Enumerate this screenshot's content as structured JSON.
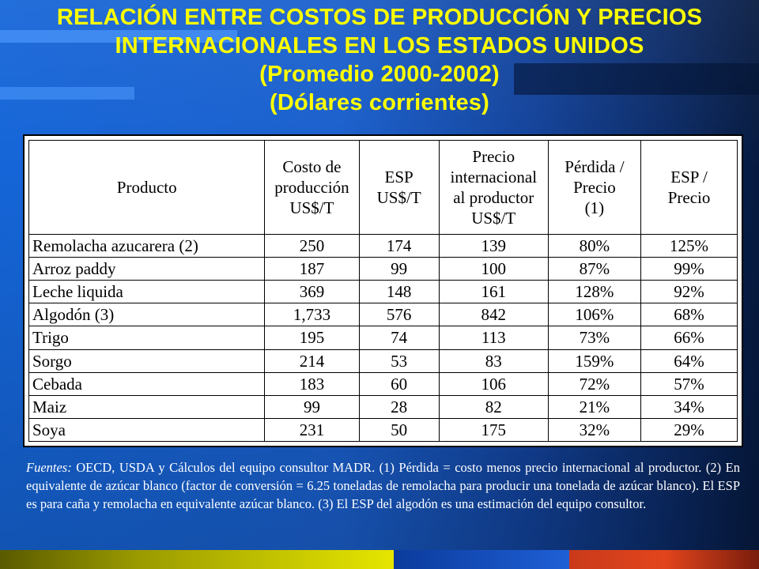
{
  "title": {
    "line1": "RELACIÓN ENTRE COSTOS DE PRODUCCIÓN Y PRECIOS",
    "line2": "INTERNACIONALES  EN  LOS ESTADOS UNIDOS",
    "line3": "(Promedio 2000-2002)",
    "line4": "(Dólares corrientes)"
  },
  "table": {
    "headers": [
      [
        "Producto"
      ],
      [
        "Costo de",
        "producción",
        "US$/T"
      ],
      [
        "ESP",
        "US$/T"
      ],
      [
        "Precio",
        "internacional",
        "al productor",
        "US$/T"
      ],
      [
        "Pérdida /",
        "Precio",
        "(1)"
      ],
      [
        "ESP /",
        "Precio"
      ]
    ],
    "rows": [
      [
        "Remolacha azucarera (2)",
        "250",
        "174",
        "139",
        "80%",
        "125%"
      ],
      [
        "Arroz paddy",
        "187",
        "99",
        "100",
        "87%",
        "99%"
      ],
      [
        "Leche liquida",
        "369",
        "148",
        "161",
        "128%",
        "92%"
      ],
      [
        "Algodón (3)",
        "1,733",
        "576",
        "842",
        "106%",
        "68%"
      ],
      [
        "Trigo",
        "195",
        "74",
        "113",
        "73%",
        "66%"
      ],
      [
        "Sorgo",
        "214",
        "53",
        "83",
        "159%",
        "64%"
      ],
      [
        "Cebada",
        "183",
        "60",
        "106",
        "72%",
        "57%"
      ],
      [
        "Maiz",
        "99",
        "28",
        "82",
        "21%",
        "34%"
      ],
      [
        "Soya",
        "231",
        "50",
        "175",
        "32%",
        "29%"
      ]
    ]
  },
  "footnote": {
    "lead": "Fuentes:",
    "text": " OECD, USDA y Cálculos del equipo consultor MADR. (1) Pérdida = costo menos precio internacional al productor. (2) En equivalente de azúcar blanco (factor de conversión = 6.25 toneladas de remolacha para producir una tonelada de azúcar blanco). El ESP es para caña y remolacha en equivalente azúcar blanco. (3) El ESP del algodón es una estimación del equipo consultor."
  }
}
